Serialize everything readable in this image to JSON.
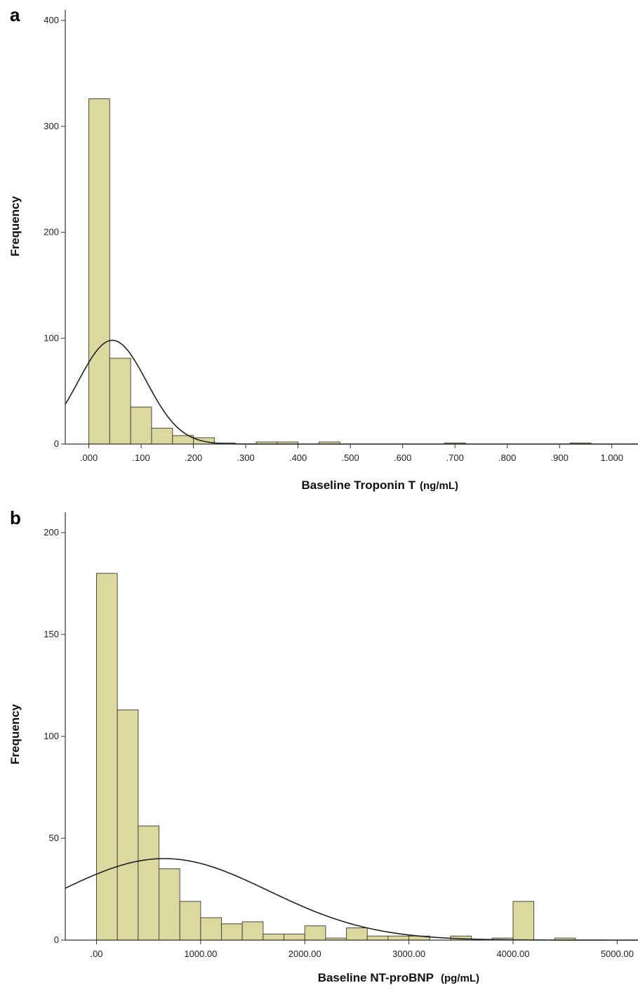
{
  "chart_data": [
    {
      "type": "bar",
      "panel": "a",
      "xlabel": "Baseline Troponin T",
      "xunit": "(ng/mL)",
      "ylabel": "Frequency",
      "ylim": [
        0,
        410
      ],
      "yticks": [
        0,
        100,
        200,
        300,
        400
      ],
      "ytick_labels": [
        "0",
        "100",
        "200",
        "300",
        "400"
      ],
      "xlim": [
        -0.045,
        1.05
      ],
      "xticks": [
        0,
        0.1,
        0.2,
        0.3,
        0.4,
        0.5,
        0.6,
        0.7,
        0.8,
        0.9,
        1.0
      ],
      "xtick_labels": [
        ".000",
        ".100",
        ".200",
        ".300",
        ".400",
        ".500",
        ".600",
        ".700",
        ".800",
        ".900",
        "1.000"
      ],
      "bin_width": 0.04,
      "bin_starts": [
        0,
        0.04,
        0.08,
        0.12,
        0.16,
        0.2,
        0.24,
        0.28,
        0.32,
        0.36,
        0.4,
        0.44,
        0.48,
        0.52,
        0.56,
        0.6,
        0.64,
        0.68,
        0.72,
        0.76,
        0.8,
        0.84,
        0.88,
        0.92,
        0.96
      ],
      "values": [
        326,
        81,
        35,
        15,
        8,
        6,
        1,
        0,
        2,
        2,
        0,
        2,
        0,
        0,
        0,
        0,
        0,
        1,
        0,
        0,
        0,
        0,
        0,
        1,
        0
      ],
      "bar_color": "#dcd8a0",
      "normal_curve": {
        "mean": 0.045,
        "sd": 0.065,
        "peak": 98
      }
    },
    {
      "type": "bar",
      "panel": "b",
      "xlabel": "Baseline NT-proBNP",
      "xunit": "(pg/mL)",
      "ylabel": "Frequency",
      "ylim": [
        0,
        210
      ],
      "yticks": [
        0,
        50,
        100,
        150,
        200
      ],
      "ytick_labels": [
        "0",
        "50",
        "100",
        "150",
        "200"
      ],
      "xlim": [
        -300,
        5200
      ],
      "xticks": [
        0,
        1000,
        2000,
        3000,
        4000,
        5000
      ],
      "xtick_labels": [
        ".00",
        "1000.00",
        "2000.00",
        "3000.00",
        "4000.00",
        "5000.00"
      ],
      "bin_width": 200,
      "bin_starts": [
        0,
        200,
        400,
        600,
        800,
        1000,
        1200,
        1400,
        1600,
        1800,
        2000,
        2200,
        2400,
        2600,
        2800,
        3000,
        3200,
        3400,
        3600,
        3800,
        4000,
        4200,
        4400
      ],
      "values": [
        180,
        113,
        56,
        35,
        19,
        11,
        8,
        9,
        3,
        3,
        7,
        1,
        6,
        2,
        2,
        2,
        0,
        2,
        0,
        1,
        19,
        0,
        1
      ],
      "bar_color": "#dcd8a0",
      "normal_curve": {
        "mean": 650,
        "sd": 1000,
        "peak": 40
      }
    }
  ]
}
